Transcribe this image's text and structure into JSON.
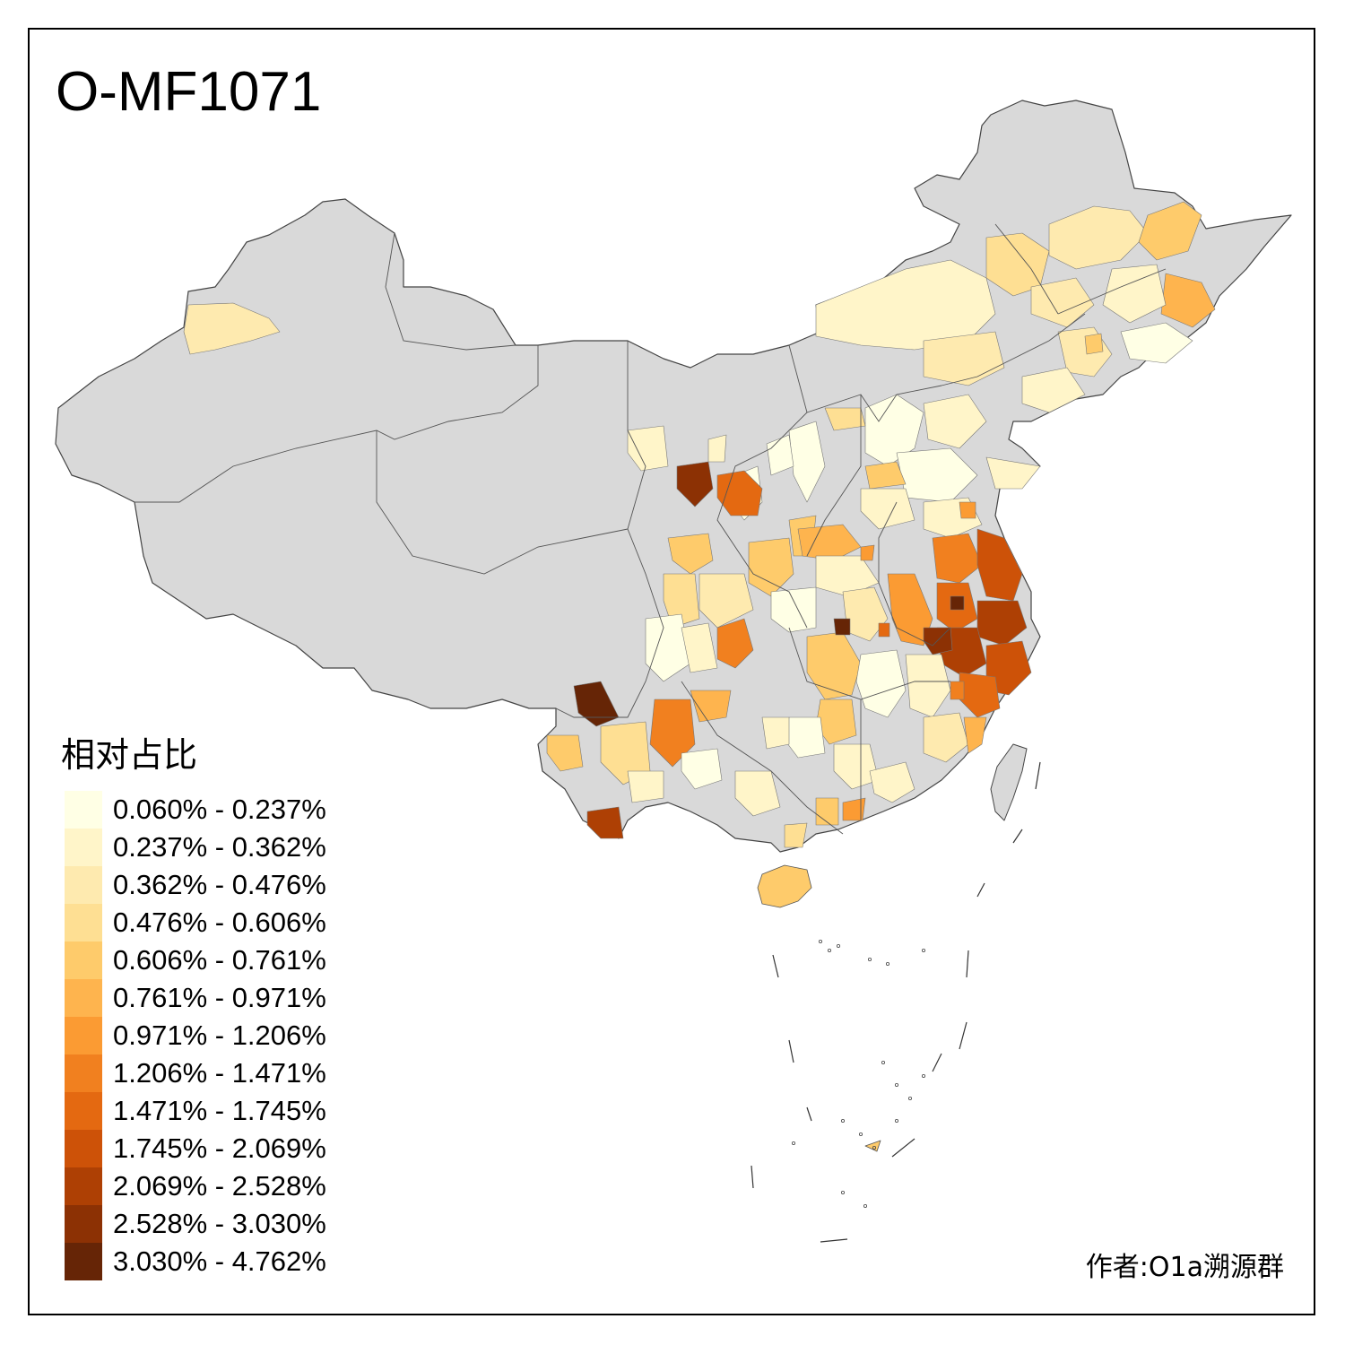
{
  "title": "O-MF1071",
  "legend": {
    "title": "相对占比",
    "bins": [
      {
        "label": "0.060% - 0.237%",
        "color": "#ffffe5"
      },
      {
        "label": "0.237% - 0.362%",
        "color": "#fff5c9"
      },
      {
        "label": "0.362% - 0.476%",
        "color": "#feeaaf"
      },
      {
        "label": "0.476% - 0.606%",
        "color": "#fedf93"
      },
      {
        "label": "0.606% - 0.761%",
        "color": "#fecb6b"
      },
      {
        "label": "0.761% - 0.971%",
        "color": "#feb44e"
      },
      {
        "label": "0.971% - 1.206%",
        "color": "#fb9b33"
      },
      {
        "label": "1.206% - 1.471%",
        "color": "#f1801f"
      },
      {
        "label": "1.471% - 1.745%",
        "color": "#e46911"
      },
      {
        "label": "1.745% - 2.069%",
        "color": "#cd5208"
      },
      {
        "label": "2.069% - 2.528%",
        "color": "#ae4004"
      },
      {
        "label": "2.528% - 3.030%",
        "color": "#8c3104"
      },
      {
        "label": "3.030% - 4.762%",
        "color": "#662506"
      }
    ]
  },
  "no_data_color": "#d9d9d9",
  "author": "作者:O1a溯源群"
}
